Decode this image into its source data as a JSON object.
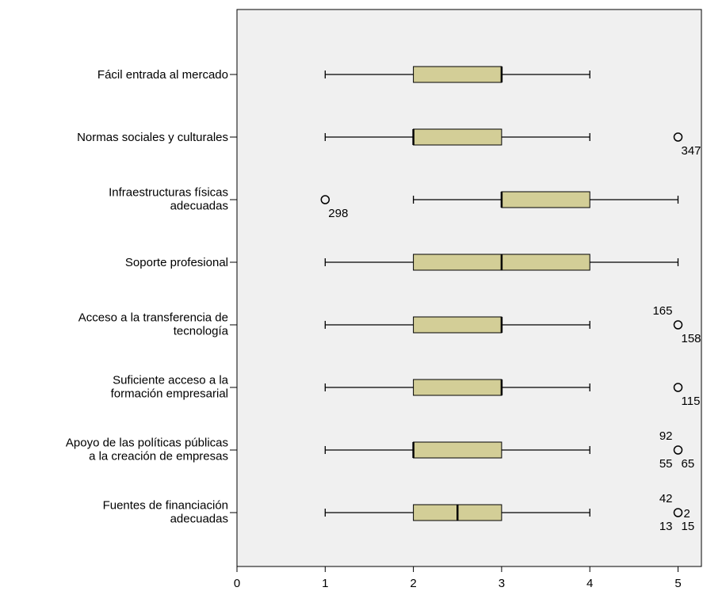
{
  "chart_data": {
    "type": "boxplot",
    "orientation": "horizontal",
    "title": "",
    "xlabel": "",
    "ylabel": "",
    "xlim": [
      0,
      5.27
    ],
    "x_ticks": [
      "0",
      "1",
      "2",
      "3",
      "4",
      "5"
    ],
    "grid": false,
    "colors": {
      "plot_bg": "#f0f0f0",
      "box_fill": "#d3ce97",
      "stroke": "#000000"
    },
    "categories": [
      [
        "Fácil entrada al mercado"
      ],
      [
        "Normas sociales y culturales"
      ],
      [
        "Infraestructuras físicas",
        "adecuadas"
      ],
      [
        "Soporte profesional"
      ],
      [
        "Acceso a la transferencia de",
        "tecnología"
      ],
      [
        "Suficiente acceso a la",
        "formación empresarial"
      ],
      [
        "Apoyo de las políticas públicas",
        "a la creación de empresas"
      ],
      [
        "Fuentes de financiación",
        "adecuadas"
      ]
    ],
    "boxes": [
      {
        "whisker_low": 1,
        "q1": 2,
        "median": 3,
        "q3": 3,
        "whisker_high": 4,
        "outliers": []
      },
      {
        "whisker_low": 1,
        "q1": 2,
        "median": 2,
        "q3": 3,
        "whisker_high": 4,
        "outliers": [
          {
            "value": 5,
            "labels": [
              {
                "text": "347",
                "pos": "below-right"
              }
            ]
          }
        ]
      },
      {
        "whisker_low": 2,
        "q1": 3,
        "median": 3,
        "q3": 4,
        "whisker_high": 5,
        "outliers": [
          {
            "value": 1,
            "labels": [
              {
                "text": "298",
                "pos": "below-right"
              }
            ]
          }
        ]
      },
      {
        "whisker_low": 1,
        "q1": 2,
        "median": 3,
        "q3": 4,
        "whisker_high": 5,
        "outliers": []
      },
      {
        "whisker_low": 1,
        "q1": 2,
        "median": 3,
        "q3": 3,
        "whisker_high": 4,
        "outliers": [
          {
            "value": 5,
            "labels": [
              {
                "text": "165",
                "pos": "above-left"
              },
              {
                "text": "158",
                "pos": "below-right"
              }
            ]
          }
        ]
      },
      {
        "whisker_low": 1,
        "q1": 2,
        "median": 3,
        "q3": 3,
        "whisker_high": 4,
        "outliers": [
          {
            "value": 5,
            "labels": [
              {
                "text": "115",
                "pos": "below-right"
              }
            ]
          }
        ]
      },
      {
        "whisker_low": 1,
        "q1": 2,
        "median": 2,
        "q3": 3,
        "whisker_high": 4,
        "outliers": [
          {
            "value": 5,
            "labels": [
              {
                "text": "92",
                "pos": "above-left"
              },
              {
                "text": "55",
                "pos": "below-left"
              },
              {
                "text": "65",
                "pos": "below-right"
              }
            ]
          }
        ]
      },
      {
        "whisker_low": 1,
        "q1": 2,
        "median": 2.5,
        "q3": 3,
        "whisker_high": 4,
        "outliers": [
          {
            "value": 5,
            "labels": [
              {
                "text": "42",
                "pos": "above-left"
              },
              {
                "text": "2",
                "pos": "right"
              },
              {
                "text": "13",
                "pos": "below-left"
              },
              {
                "text": "15",
                "pos": "below-right"
              }
            ]
          }
        ]
      }
    ]
  }
}
